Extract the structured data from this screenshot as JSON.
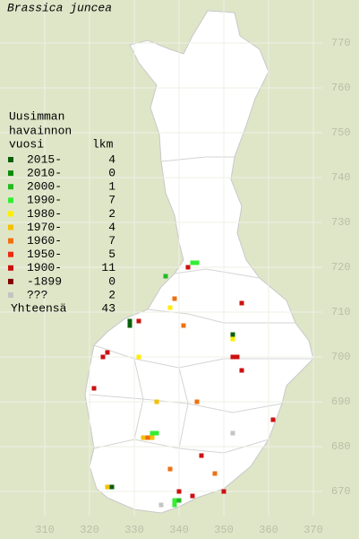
{
  "title": "Brassica juncea",
  "axes": {
    "xticks": [
      310,
      320,
      330,
      340,
      350,
      360,
      370
    ],
    "yticks": [
      670,
      680,
      690,
      700,
      710,
      720,
      730,
      740,
      750,
      760,
      770
    ]
  },
  "legend": {
    "heading": [
      "Uusimman",
      "havainnon",
      "vuosi"
    ],
    "count_heading": "lkm",
    "items": [
      {
        "label": "2015-",
        "count": 4,
        "color": "#0a5f0a",
        "points": [
          [
            329,
            708
          ],
          [
            329,
            707
          ],
          [
            352,
            705
          ],
          [
            325,
            671
          ]
        ]
      },
      {
        "label": "2010-",
        "count": 0,
        "color": "#0d8a0d",
        "points": []
      },
      {
        "label": "2000-",
        "count": 1,
        "color": "#22bb22",
        "points": [
          [
            337,
            718
          ],
          [
            340,
            668
          ]
        ]
      },
      {
        "label": "1990-",
        "count": 7,
        "color": "#33ee33",
        "points": [
          [
            343,
            721
          ],
          [
            344,
            721
          ],
          [
            334,
            683
          ],
          [
            335,
            683
          ],
          [
            339,
            668
          ],
          [
            339,
            667
          ]
        ]
      },
      {
        "label": "1980-",
        "count": 2,
        "color": "#ffee00",
        "points": [
          [
            338,
            711
          ],
          [
            352,
            704
          ],
          [
            331,
            700
          ]
        ]
      },
      {
        "label": "1970-",
        "count": 4,
        "color": "#f5c000",
        "points": [
          [
            335,
            690
          ],
          [
            332,
            682
          ],
          [
            334,
            682
          ],
          [
            324,
            671
          ]
        ]
      },
      {
        "label": "1960-",
        "count": 7,
        "color": "#f07010",
        "points": [
          [
            339,
            713
          ],
          [
            341,
            707
          ],
          [
            344,
            690
          ],
          [
            333,
            682
          ],
          [
            338,
            675
          ],
          [
            348,
            674
          ]
        ]
      },
      {
        "label": "1950-",
        "count": 5,
        "color": "#ee2a10",
        "points": []
      },
      {
        "label": "1900-",
        "count": 11,
        "color": "#cc1010",
        "points": [
          [
            342,
            720
          ],
          [
            354,
            712
          ],
          [
            331,
            708
          ],
          [
            324,
            701
          ],
          [
            323,
            700
          ],
          [
            352,
            700
          ],
          [
            353,
            700
          ],
          [
            354,
            697
          ],
          [
            321,
            693
          ],
          [
            361,
            686
          ],
          [
            345,
            678
          ],
          [
            340,
            670
          ],
          [
            350,
            670
          ],
          [
            343,
            669
          ]
        ]
      },
      {
        "label": "-1899",
        "count": 0,
        "color": "#800000",
        "points": []
      },
      {
        "label": "???",
        "count": 2,
        "color": "#c4c4c4",
        "points": [
          [
            352,
            683
          ],
          [
            336,
            667
          ]
        ]
      }
    ],
    "total_label": "Yhteensä",
    "total": 43
  }
}
